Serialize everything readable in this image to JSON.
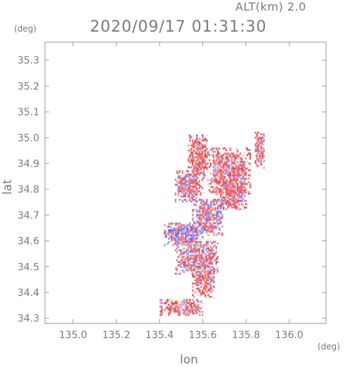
{
  "header": {
    "alt_label": "ALT(km) 2.0",
    "title": "2020/09/17 01:31:30"
  },
  "axes": {
    "y_unit": "(deg)",
    "x_unit": "(deg)",
    "y_name": "lat",
    "x_name": "lon"
  },
  "colors": {
    "axis": "#9a9a9a",
    "text": "#7a7a7a",
    "positive": "#f5a0a0",
    "positive_strong": "#e85050",
    "negative": "#a8a8f5",
    "negative_strong": "#5050e0",
    "neutral": "#f0d8e0"
  },
  "chart_data": {
    "type": "heatmap",
    "title": "2020/09/17 01:31:30",
    "subtitle": "ALT(km) 2.0",
    "xlabel": "lon",
    "ylabel": "lat",
    "x_unit": "(deg)",
    "y_unit": "(deg)",
    "xlim": [
      134.87,
      136.17
    ],
    "ylim": [
      34.28,
      35.37
    ],
    "x_ticks": [
      135.0,
      135.2,
      135.4,
      135.6,
      135.8,
      136.0
    ],
    "x_tick_labels": [
      "135.0",
      "135.2",
      "135.4",
      "135.6",
      "135.8",
      "136.0"
    ],
    "y_ticks": [
      34.3,
      34.4,
      34.5,
      34.6,
      34.7,
      34.8,
      34.9,
      35.0,
      35.1,
      35.2,
      35.3
    ],
    "y_tick_labels": [
      "34.3",
      "34.4",
      "34.5",
      "34.6",
      "34.7",
      "34.8",
      "34.9",
      "35.0",
      "35.1",
      "35.2",
      "35.3"
    ],
    "grid": false,
    "color_scale": "diverging red-blue (red positive, blue negative)",
    "echo_regions": [
      {
        "lon_min": 135.53,
        "lon_max": 135.62,
        "lat_min": 34.85,
        "lat_max": 35.01,
        "mean_value": 0.5
      },
      {
        "lon_min": 135.62,
        "lon_max": 135.82,
        "lat_min": 34.78,
        "lat_max": 34.96,
        "mean_value": 0.45
      },
      {
        "lon_min": 135.47,
        "lon_max": 135.6,
        "lat_min": 34.75,
        "lat_max": 34.87,
        "mean_value": 0.2
      },
      {
        "lon_min": 135.66,
        "lon_max": 135.8,
        "lat_min": 34.72,
        "lat_max": 34.82,
        "mean_value": 0.35
      },
      {
        "lon_min": 135.55,
        "lon_max": 135.69,
        "lat_min": 34.62,
        "lat_max": 34.76,
        "mean_value": 0.1
      },
      {
        "lon_min": 135.42,
        "lon_max": 135.6,
        "lat_min": 34.58,
        "lat_max": 34.67,
        "mean_value": -0.1
      },
      {
        "lon_min": 135.47,
        "lon_max": 135.67,
        "lat_min": 34.47,
        "lat_max": 34.6,
        "mean_value": 0.2
      },
      {
        "lon_min": 135.55,
        "lon_max": 135.65,
        "lat_min": 34.38,
        "lat_max": 34.5,
        "mean_value": 0.5
      },
      {
        "lon_min": 135.84,
        "lon_max": 135.88,
        "lat_min": 34.88,
        "lat_max": 35.02,
        "mean_value": 0.3
      },
      {
        "lon_min": 135.4,
        "lon_max": 135.6,
        "lat_min": 34.31,
        "lat_max": 34.37,
        "mean_value": 0.4
      }
    ]
  }
}
